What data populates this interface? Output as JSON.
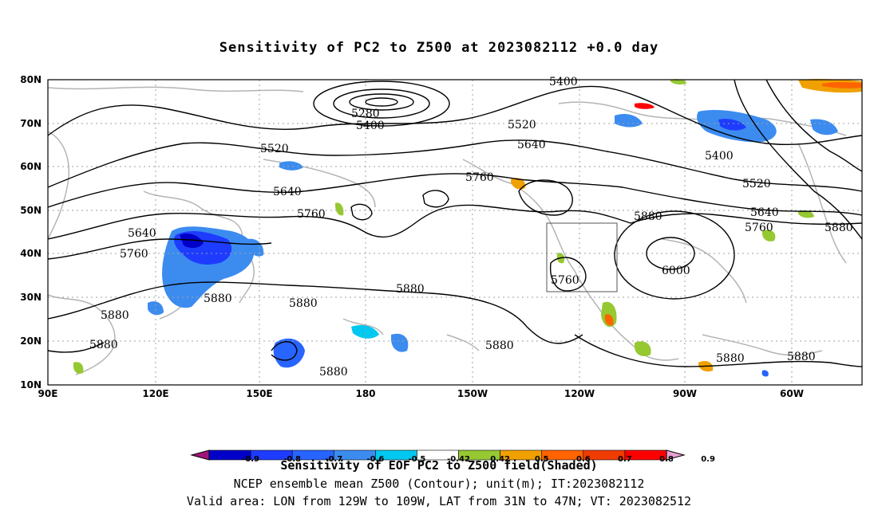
{
  "title": "Sensitivity of PC2 to Z500 at 2023082112 +0.0 day",
  "map": {
    "lat_labels": [
      "80N",
      "70N",
      "60N",
      "50N",
      "40N",
      "30N",
      "20N",
      "10N"
    ],
    "lon_labels": [
      "90E",
      "120E",
      "150E",
      "180",
      "150W",
      "120W",
      "90W",
      "60W"
    ],
    "lat_range": [
      10,
      80
    ],
    "lon_range_deg_east": [
      90,
      310
    ],
    "grid": true
  },
  "contours": {
    "labels": [
      "5400",
      "5280",
      "5400",
      "5520",
      "5520",
      "5640",
      "5640",
      "5760",
      "5640",
      "5760",
      "5760",
      "5880",
      "5880",
      "5880",
      "5880",
      "5880",
      "5880",
      "5880",
      "5760",
      "5880",
      "6000",
      "5880",
      "5880",
      "5400",
      "5520",
      "5640",
      "5760",
      "5880"
    ]
  },
  "colorbar": {
    "tick_labels": [
      "-0.9",
      "-0.8",
      "-0.7",
      "-0.6",
      "-0.5",
      "-0.42",
      "0.42",
      "0.5",
      "0.6",
      "0.7",
      "0.8",
      "0.9"
    ],
    "colors": [
      "#a0147a",
      "#0000c8",
      "#1e3cff",
      "#2864ff",
      "#3c8cf0",
      "#00c8f0",
      "#ffffff",
      "#96c832",
      "#f0a000",
      "#ff6400",
      "#f03c00",
      "#ff0000",
      "#e6a0d2"
    ]
  },
  "captions": {
    "line1": "Sensitivity of EOF PC2 to Z500 field(Shaded)",
    "line2": "NCEP ensemble mean Z500 (Contour); unit(m); IT:2023082112",
    "line3": "Valid area: LON from 129W to 109W, LAT from 31N to 47N; VT: 2023082512"
  },
  "valid_area_box": {
    "lon": [
      "129W",
      "109W"
    ],
    "lat": [
      "31N",
      "47N"
    ]
  }
}
